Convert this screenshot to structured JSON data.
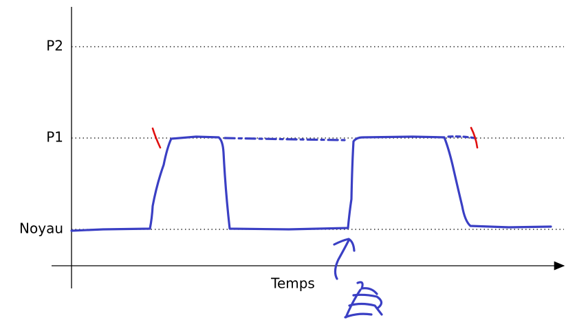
{
  "levels": [
    {
      "label": "P2"
    },
    {
      "label": "P1"
    },
    {
      "label": "Noyau"
    }
  ],
  "axis": {
    "x_label": "Temps"
  }
}
